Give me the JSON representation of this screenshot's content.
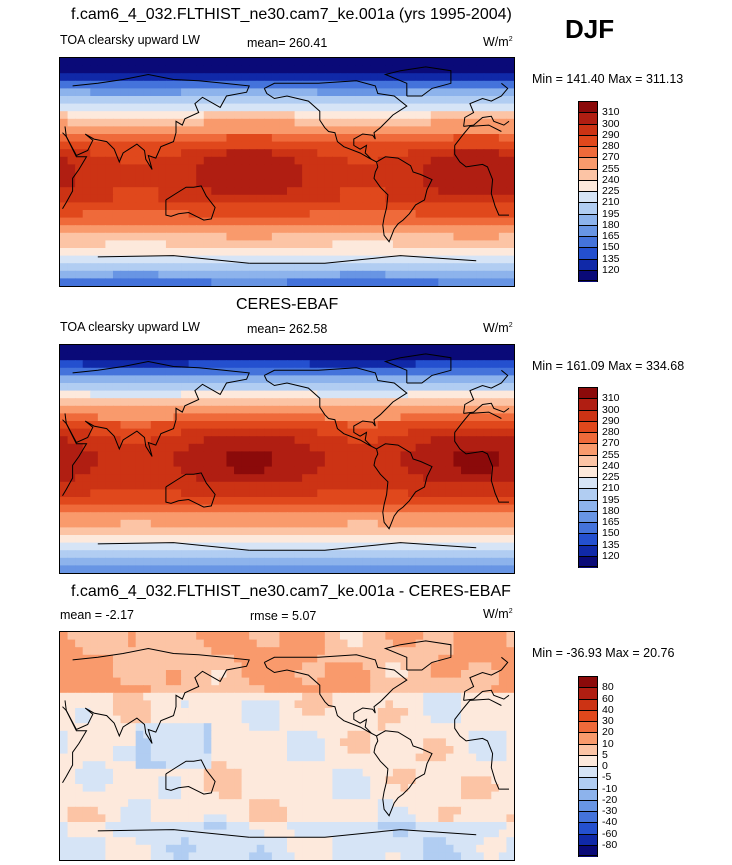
{
  "season": "DJF",
  "panels": [
    {
      "title": "f.cam6_4_032.FLTHIST_ne30.cam7_ke.001a (yrs 1995-2004)",
      "variable": "TOA clearsky upward LW",
      "stat": "mean= 260.41",
      "units": "W/m",
      "units_sup": "2",
      "minmax": "Min = 141.40 Max = 311.13"
    },
    {
      "title": "CERES-EBAF",
      "variable": "TOA clearsky upward LW",
      "stat": "mean= 262.58",
      "units": "W/m",
      "units_sup": "2",
      "minmax": "Min = 161.09 Max = 334.68"
    },
    {
      "title": "f.cam6_4_032.FLTHIST_ne30.cam7_ke.001a - CERES-EBAF",
      "variable": "mean =  -2.17",
      "stat": "rmse =   5.07",
      "units": "W/m",
      "units_sup": "2",
      "minmax": "Min = -36.93 Max =  20.76"
    }
  ],
  "chart_data": [
    {
      "type": "heatmap",
      "title": "f.cam6_4_032.FLTHIST_ne30.cam7_ke.001a (yrs 1995-2004)",
      "variable": "TOA clearsky upward LW",
      "mean": 260.41,
      "min": 141.4,
      "max": 311.13,
      "colorbar_levels": [
        "310",
        "300",
        "290",
        "280",
        "270",
        "255",
        "240",
        "225",
        "210",
        "195",
        "180",
        "165",
        "150",
        "135",
        "120"
      ],
      "colorbar_colors": [
        "#8b0a0a",
        "#b01e12",
        "#cc3314",
        "#e0481c",
        "#ef6a3a",
        "#f99a6c",
        "#fcc4a5",
        "#fde9dc",
        "#d6e4f6",
        "#b1cdf2",
        "#8db3ec",
        "#6895e4",
        "#4473db",
        "#2450cf",
        "#1029a8",
        "#0a0a78"
      ]
    },
    {
      "type": "heatmap",
      "title": "CERES-EBAF",
      "variable": "TOA clearsky upward LW",
      "mean": 262.58,
      "min": 161.09,
      "max": 334.68,
      "colorbar_levels": [
        "310",
        "300",
        "290",
        "280",
        "270",
        "255",
        "240",
        "225",
        "210",
        "195",
        "180",
        "165",
        "150",
        "135",
        "120"
      ],
      "colorbar_colors": [
        "#8b0a0a",
        "#b01e12",
        "#cc3314",
        "#e0481c",
        "#ef6a3a",
        "#f99a6c",
        "#fcc4a5",
        "#fde9dc",
        "#d6e4f6",
        "#b1cdf2",
        "#8db3ec",
        "#6895e4",
        "#4473db",
        "#2450cf",
        "#1029a8",
        "#0a0a78"
      ]
    },
    {
      "type": "heatmap",
      "title": "f.cam6_4_032.FLTHIST_ne30.cam7_ke.001a - CERES-EBAF",
      "mean": -2.17,
      "rmse": 5.07,
      "min": -36.93,
      "max": 20.76,
      "colorbar_levels": [
        "80",
        "60",
        "40",
        "30",
        "20",
        "10",
        "5",
        "0",
        "-5",
        "-10",
        "-20",
        "-30",
        "-40",
        "-60",
        "-80"
      ],
      "colorbar_colors": [
        "#8b0a0a",
        "#b01e12",
        "#cc3314",
        "#e0481c",
        "#ef6a3a",
        "#f99a6c",
        "#fcc4a5",
        "#fde9dc",
        "#d6e4f6",
        "#b1cdf2",
        "#8db3ec",
        "#6895e4",
        "#4473db",
        "#2450cf",
        "#1029a8",
        "#0a0a78"
      ]
    }
  ]
}
